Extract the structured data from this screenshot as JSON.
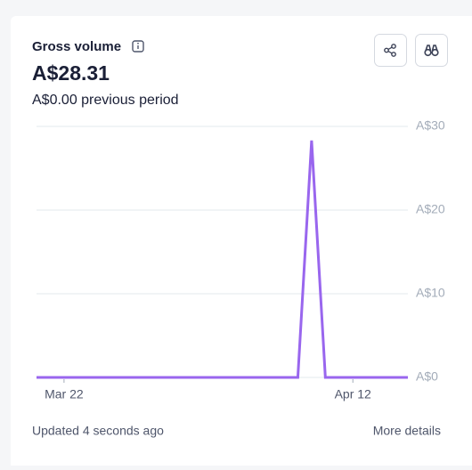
{
  "card": {
    "title": "Gross volume",
    "amount": "A$28.31",
    "previous": "A$0.00 previous period",
    "updated": "Updated 4 seconds ago",
    "more": "More details"
  },
  "chart_data": {
    "type": "line",
    "categories": [
      null,
      null,
      "Mar 22",
      null,
      null,
      null,
      null,
      null,
      null,
      null,
      null,
      null,
      null,
      null,
      null,
      null,
      null,
      null,
      null,
      null,
      null,
      null,
      null,
      "Apr 12",
      null,
      null,
      null,
      null
    ],
    "values": [
      0,
      0,
      0,
      0,
      0,
      0,
      0,
      0,
      0,
      0,
      0,
      0,
      0,
      0,
      0,
      0,
      0,
      0,
      0,
      0,
      28.31,
      0,
      0,
      0,
      0,
      0,
      0,
      0
    ],
    "color": "#9966ee",
    "ylim": [
      0,
      30
    ],
    "yticks": [
      {
        "value": 0,
        "label": "A$0"
      },
      {
        "value": 10,
        "label": "A$10"
      },
      {
        "value": 20,
        "label": "A$20"
      },
      {
        "value": 30,
        "label": "A$30"
      }
    ],
    "grid": true
  }
}
